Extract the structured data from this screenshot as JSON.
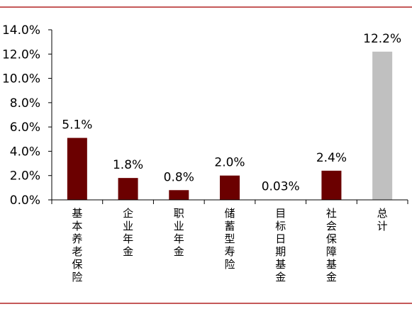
{
  "chart_data": {
    "type": "bar",
    "categories": [
      "基本养老保险",
      "企业年金",
      "职业年金",
      "储蓄型寿险",
      "目标日期基金",
      "社会保障基金",
      "总计"
    ],
    "values": [
      5.1,
      1.8,
      0.8,
      2.0,
      0.03,
      2.4,
      12.2
    ],
    "data_labels": [
      "5.1%",
      "1.8%",
      "0.8%",
      "2.0%",
      "0.03%",
      "2.4%",
      "12.2%"
    ],
    "yticks": [
      "0.0%",
      "2.0%",
      "4.0%",
      "6.0%",
      "8.0%",
      "10.0%",
      "12.0%",
      "14.0%"
    ],
    "ylim": [
      0,
      14
    ],
    "colors": {
      "bar": "#6b0000",
      "total_bar": "#c0c0c0",
      "rule": "#b22222",
      "axis": "#000000"
    },
    "title": "",
    "xlabel": "",
    "ylabel": ""
  }
}
